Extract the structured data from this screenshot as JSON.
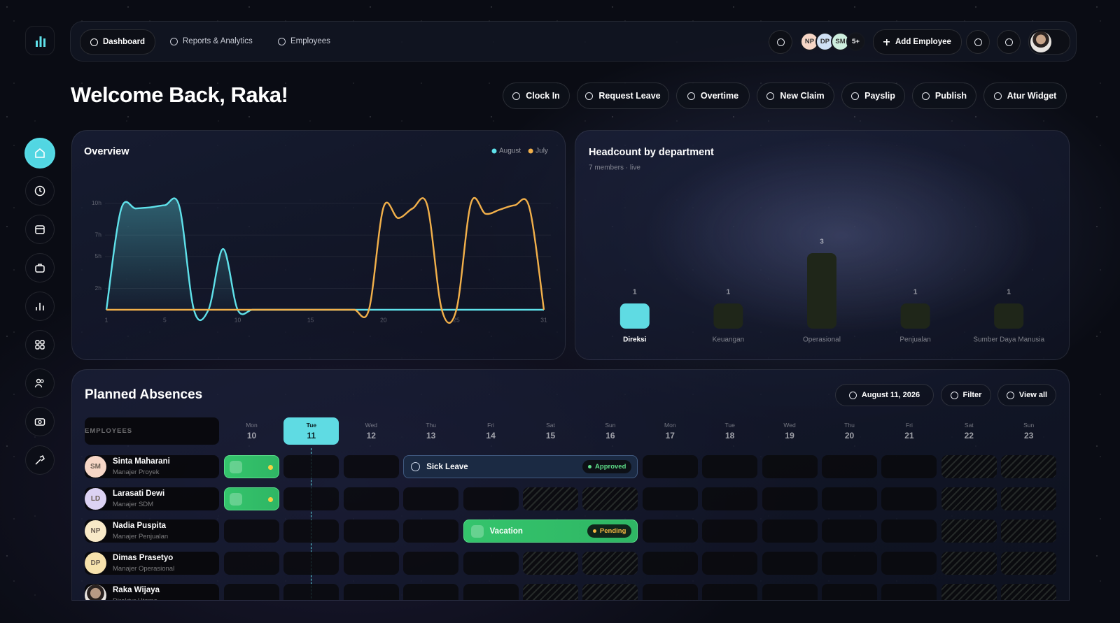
{
  "nav": {
    "items": [
      "Dashboard",
      "Reports & Analytics",
      "Employees"
    ],
    "avatars": [
      "NP",
      "DP",
      "SM",
      "5+"
    ],
    "add_employee": "Add Employee"
  },
  "welcome": "Welcome Back, Raka!",
  "actions": [
    "Clock In",
    "Request Leave",
    "Overtime",
    "New Claim",
    "Payslip",
    "Publish",
    "Atur Widget"
  ],
  "chart_data": [
    {
      "type": "line",
      "title": "Overview",
      "x": [
        1,
        2,
        3,
        4,
        5,
        6,
        7,
        8,
        9,
        10,
        11,
        12,
        13,
        14,
        15,
        16,
        17,
        18,
        19,
        20,
        21,
        22,
        23,
        24,
        25,
        26,
        27,
        28,
        29,
        30,
        31
      ],
      "xlim": [
        1,
        31
      ],
      "xticks": [
        1,
        5,
        10,
        15,
        20,
        25,
        31
      ],
      "ylim": [
        0,
        11
      ],
      "yticks": [
        {
          "value": 10,
          "label": "10h"
        },
        {
          "value": 7,
          "label": "7h"
        },
        {
          "value": 5,
          "label": "5h"
        },
        {
          "value": 2,
          "label": "2h"
        }
      ],
      "grid": true,
      "legend": "top-right",
      "series": [
        {
          "name": "August",
          "color": "#5fe1ea",
          "values": [
            0,
            9.4,
            9.5,
            9.6,
            9.8,
            9.7,
            0,
            0,
            5.7,
            0,
            0,
            0,
            0,
            0,
            0,
            0,
            0,
            0,
            0,
            0,
            0,
            0,
            0,
            0,
            0,
            0,
            0,
            0,
            0,
            0,
            0
          ]
        },
        {
          "name": "July",
          "color": "#f2b04a",
          "values": [
            0,
            0,
            0,
            0,
            0,
            0,
            0,
            0,
            0,
            0,
            0,
            0,
            0,
            0,
            0,
            0,
            0,
            0,
            0,
            9.6,
            8.6,
            9.5,
            9.8,
            0,
            0,
            10,
            9,
            9.4,
            9.8,
            9.6,
            0
          ]
        }
      ]
    },
    {
      "type": "bar",
      "title": "Headcount by department",
      "subtitle": "7 members · live",
      "categories": [
        "Direksi",
        "Keuangan",
        "Operasional",
        "Penjualan",
        "Sumber Daya Manusia"
      ],
      "values": [
        1,
        1,
        3,
        1,
        1
      ],
      "colors": [
        "#5fdbe3",
        "#1f2619",
        "#1f2619",
        "#1f2619",
        "#1f2619"
      ]
    }
  ],
  "absences": {
    "title": "Planned Absences",
    "date": "August 11, 2026",
    "filter": "Filter",
    "view_all": "View all",
    "employees_header": "EMPLOYEES",
    "today": "11",
    "weekend": [
      "Sat",
      "Sun"
    ],
    "days": [
      {
        "weekday": "Mon",
        "day": "10"
      },
      {
        "weekday": "Tue",
        "day": "11"
      },
      {
        "weekday": "Wed",
        "day": "12"
      },
      {
        "weekday": "Thu",
        "day": "13"
      },
      {
        "weekday": "Fri",
        "day": "14"
      },
      {
        "weekday": "Sat",
        "day": "15"
      },
      {
        "weekday": "Sun",
        "day": "16"
      },
      {
        "weekday": "Mon",
        "day": "17"
      },
      {
        "weekday": "Tue",
        "day": "18"
      },
      {
        "weekday": "Wed",
        "day": "19"
      },
      {
        "weekday": "Thu",
        "day": "20"
      },
      {
        "weekday": "Fri",
        "day": "21"
      },
      {
        "weekday": "Sat",
        "day": "22"
      },
      {
        "weekday": "Sun",
        "day": "23"
      }
    ],
    "rows": [
      {
        "initials": "SM",
        "name": "Sinta Maharani",
        "role": "Manajer Proyek",
        "avatar_color": "#f6d6c6",
        "clock_in": "10"
      },
      {
        "initials": "LD",
        "name": "Larasati Dewi",
        "role": "Manajer SDM",
        "avatar_color": "#dcd2f3",
        "clock_in": "10"
      },
      {
        "initials": "NP",
        "name": "Nadia Puspita",
        "role": "Manajer Penjualan",
        "avatar_color": "#f8e9c8"
      },
      {
        "initials": "DP",
        "name": "Dimas Prasetyo",
        "role": "Manajer Operasional",
        "avatar_color": "#f7e2ad"
      },
      {
        "name": "Raka Wijaya",
        "role": "Direktur Utama",
        "avatar_color": "#b89a84"
      }
    ],
    "events": [
      {
        "employee": 0,
        "from": "13",
        "to": "16",
        "label": "Sick Leave",
        "status": "Approved",
        "style": "info"
      },
      {
        "employee": 2,
        "from": "14",
        "to": "16",
        "label": "Vacation",
        "status": "Pending",
        "style": "success"
      }
    ]
  }
}
